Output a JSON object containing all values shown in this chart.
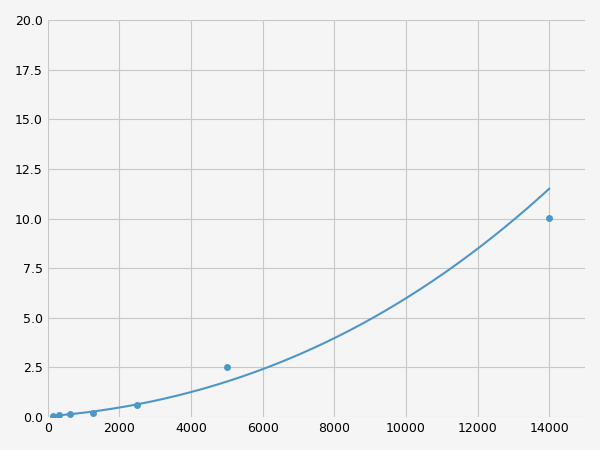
{
  "x_points": [
    156,
    313,
    625,
    1250,
    2500,
    5000,
    14000
  ],
  "y_points": [
    0.07,
    0.1,
    0.15,
    0.22,
    0.6,
    2.55,
    10.05
  ],
  "line_color": "#4e96c8",
  "marker_color": "#4e96c8",
  "marker_size": 5,
  "xlim": [
    0,
    15000
  ],
  "ylim": [
    0,
    20
  ],
  "xticks": [
    0,
    2000,
    4000,
    6000,
    8000,
    10000,
    12000,
    14000
  ],
  "yticks": [
    0.0,
    2.5,
    5.0,
    7.5,
    10.0,
    12.5,
    15.0,
    17.5,
    20.0
  ],
  "grid_color": "#c8c8c8",
  "background_color": "#f5f5f5",
  "figsize": [
    6.0,
    4.5
  ],
  "dpi": 100
}
